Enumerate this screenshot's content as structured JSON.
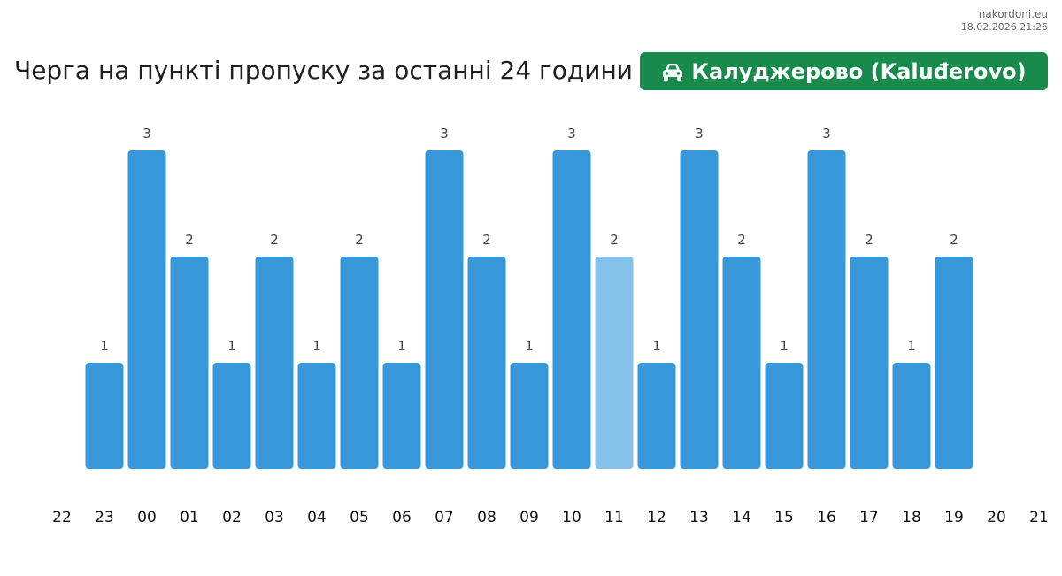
{
  "site": {
    "name": "nakordoni.eu",
    "timestamp": "18.02.2026 21:26"
  },
  "header": {
    "title": "Черга на пункті пропуску за останні 24 години",
    "checkpoint_label": "Калуджерово (Kaluđerovo)",
    "checkpoint_icon": "car-icon",
    "badge_color": "#178a4c"
  },
  "colors": {
    "bar": "#3898da",
    "bar_highlight": "#85c1e9"
  },
  "chart_data": {
    "type": "bar",
    "title": "Черга на пункті пропуску за останні 24 години",
    "xlabel": "",
    "ylabel": "",
    "categories": [
      "22",
      "23",
      "00",
      "01",
      "02",
      "03",
      "04",
      "05",
      "06",
      "07",
      "08",
      "09",
      "10",
      "11",
      "12",
      "13",
      "14",
      "15",
      "16",
      "17",
      "18",
      "19",
      "20",
      "21"
    ],
    "values": [
      null,
      1,
      3,
      2,
      1,
      2,
      1,
      2,
      1,
      3,
      2,
      1,
      3,
      2,
      1,
      3,
      2,
      1,
      3,
      2,
      1,
      2,
      null,
      null
    ],
    "highlighted_category": "11",
    "ylim": [
      0,
      3
    ],
    "grid": false,
    "legend": "none"
  }
}
